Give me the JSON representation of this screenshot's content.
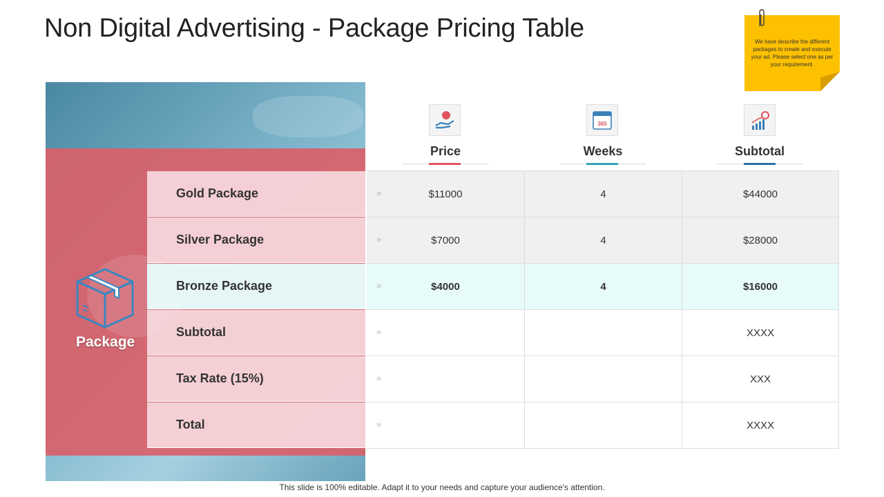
{
  "title": "Non Digital Advertising - Package Pricing Table",
  "note": "We have describe the different packages to create and execute your ad. Please select one as per your requirement.",
  "package_label": "Package",
  "columns": [
    {
      "label": "Price",
      "icon": "hand-money-icon",
      "accent": "#e0525d"
    },
    {
      "label": "Weeks",
      "icon": "calendar-365-icon",
      "accent": "#3a9fb8"
    },
    {
      "label": "Subtotal",
      "icon": "growth-chart-icon",
      "accent": "#2a6fa8"
    }
  ],
  "calendar_text": "365",
  "rows": [
    {
      "label": "Gold Package",
      "price": "$11000",
      "weeks": "4",
      "subtotal": "$44000"
    },
    {
      "label": "Silver Package",
      "price": "$7000",
      "weeks": "4",
      "subtotal": "$28000"
    },
    {
      "label": "Bronze Package",
      "price": "$4000",
      "weeks": "4",
      "subtotal": "$16000"
    },
    {
      "label": "Subtotal",
      "price": "",
      "weeks": "",
      "subtotal": "XXXX"
    },
    {
      "label": "Tax Rate (15%)",
      "price": "",
      "weeks": "",
      "subtotal": "XXX"
    },
    {
      "label": "Total",
      "price": "",
      "weeks": "",
      "subtotal": "XXXX"
    }
  ],
  "chevron": "»",
  "footer": "This slide is 100% editable. Adapt it to your needs and capture your audience's attention.",
  "colors": {
    "accent_red": "#d8616b",
    "note_yellow": "#fec100",
    "highlight_row": "#e6fbfa"
  }
}
